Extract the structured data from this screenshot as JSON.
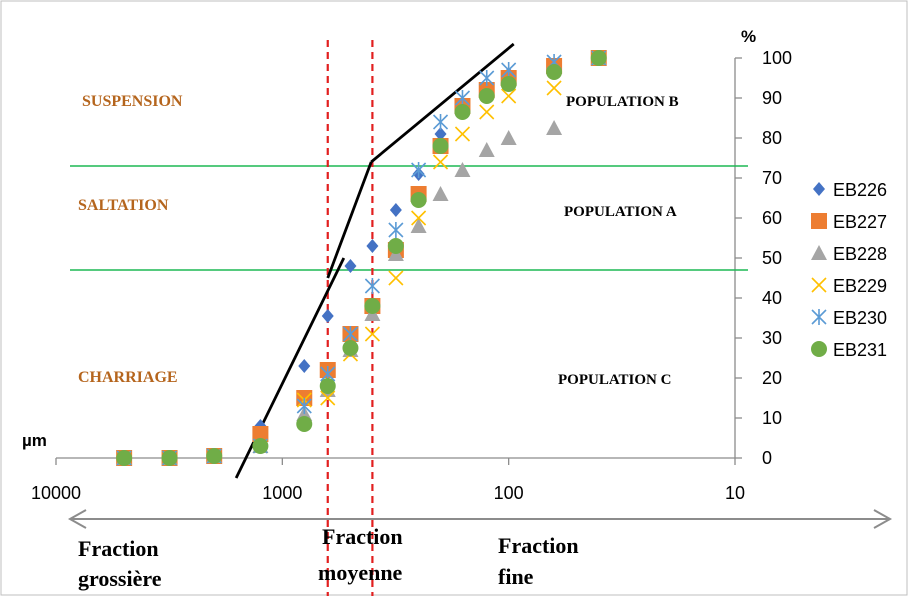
{
  "chart_data": {
    "type": "scatter",
    "x_scale": "log",
    "x_reversed": true,
    "xlim": [
      10000,
      10
    ],
    "ylim": [
      0,
      100
    ],
    "x_unit": "µm",
    "y_unit": "%",
    "x_ticks": [
      10000,
      1000,
      100,
      10
    ],
    "x_tick_labels": [
      "10000",
      "1000",
      "100",
      "10"
    ],
    "y_ticks": [
      0,
      10,
      20,
      30,
      40,
      50,
      60,
      70,
      80,
      90,
      100
    ],
    "legend_position": "right",
    "grid": false,
    "series": [
      {
        "name": "EB226",
        "marker": "diamond",
        "color": "#4472c4",
        "x": [
          5000,
          3150,
          2000,
          1250,
          800,
          630,
          500,
          400,
          315,
          250,
          200,
          160,
          125,
          100,
          63,
          40
        ],
        "y": [
          0,
          0,
          0.5,
          8,
          23,
          35.5,
          48,
          53,
          62,
          71,
          81,
          88,
          92,
          96,
          98,
          100
        ]
      },
      {
        "name": "EB227",
        "marker": "square",
        "color": "#ed7d31",
        "x": [
          5000,
          3150,
          2000,
          1250,
          800,
          630,
          500,
          400,
          315,
          250,
          200,
          160,
          125,
          100,
          63,
          40
        ],
        "y": [
          0,
          0,
          0.5,
          6,
          15,
          22,
          31,
          38,
          52,
          66,
          78,
          88,
          92,
          95,
          98,
          100
        ]
      },
      {
        "name": "EB228",
        "marker": "triangle",
        "color": "#a5a5a5",
        "x": [
          5000,
          3150,
          2000,
          1250,
          800,
          630,
          500,
          400,
          315,
          250,
          200,
          160,
          125,
          100,
          63,
          40
        ],
        "y": [
          0,
          0,
          0.5,
          3,
          11,
          17,
          27,
          36,
          51,
          58,
          66,
          72,
          77,
          80,
          82.5,
          100
        ]
      },
      {
        "name": "EB229",
        "marker": "x",
        "color": "#ffc000",
        "x": [
          5000,
          3150,
          2000,
          1250,
          800,
          630,
          500,
          400,
          315,
          250,
          200,
          160,
          125,
          100,
          63,
          40
        ],
        "y": [
          0,
          0,
          0.5,
          3,
          14.5,
          15,
          26,
          31,
          45,
          60,
          74,
          81,
          86.5,
          90.5,
          92.5,
          100
        ]
      },
      {
        "name": "EB230",
        "marker": "asterisk",
        "color": "#5b9bd5",
        "x": [
          5000,
          3150,
          2000,
          1250,
          800,
          630,
          500,
          400,
          315,
          250,
          200,
          160,
          125,
          100,
          63,
          40
        ],
        "y": [
          0,
          0,
          0.5,
          3,
          13,
          21,
          31,
          43,
          57,
          72,
          84,
          90,
          95,
          97,
          99,
          100
        ]
      },
      {
        "name": "EB231",
        "marker": "circle",
        "color": "#70ad47",
        "x": [
          5000,
          3150,
          2000,
          1250,
          800,
          630,
          500,
          400,
          315,
          250,
          200,
          160,
          125,
          100,
          63,
          40
        ],
        "y": [
          0,
          0,
          0.5,
          3,
          8.5,
          18,
          27.5,
          38,
          53,
          64.5,
          78,
          86.5,
          90.5,
          93.5,
          96.5,
          100
        ]
      }
    ],
    "reference_lines": {
      "horizontal_green_y": [
        73,
        47
      ],
      "vertical_red_dashed_x": [
        630,
        400
      ],
      "black_segments": [
        {
          "x": [
            1600,
            535
          ],
          "y": [
            -5,
            50
          ]
        },
        {
          "x": [
            630,
            405
          ],
          "y": [
            45,
            74
          ]
        },
        {
          "x": [
            405,
            95
          ],
          "y": [
            74,
            103.5
          ]
        }
      ]
    },
    "zone_labels": {
      "suspension": "SUSPENSION",
      "saltation": "SALTATION",
      "charriage": "CHARRIAGE"
    },
    "population_labels": {
      "b": "POPULATION B",
      "a": "POPULATION A",
      "c": "POPULATION C"
    },
    "fractions": {
      "coarse": [
        "Fraction",
        "grossière"
      ],
      "medium": [
        "Fraction",
        "moyenne"
      ],
      "fine": [
        "Fraction",
        "fine"
      ]
    }
  }
}
